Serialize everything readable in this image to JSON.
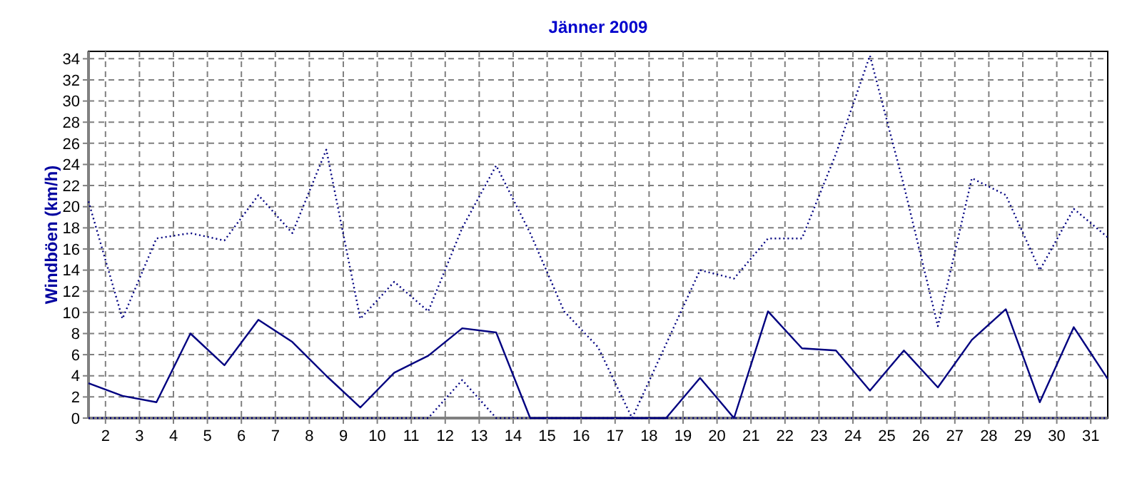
{
  "chart_data": {
    "type": "line",
    "title": "Jänner 2009",
    "ylabel": "Windböen (km/h)",
    "x": [
      1.5,
      2.5,
      3.5,
      4.5,
      5.5,
      6.5,
      7.5,
      8.5,
      9.5,
      10.5,
      11.5,
      12.5,
      13.5,
      14.5,
      15.5,
      16.5,
      17.5,
      18.5,
      19.5,
      20.5,
      21.5,
      22.5,
      23.5,
      24.5,
      25.5,
      26.5,
      27.5,
      28.5,
      29.5,
      30.5,
      31.5
    ],
    "xlim": [
      1.5,
      31.5
    ],
    "xticks": [
      2,
      3,
      4,
      5,
      6,
      7,
      8,
      9,
      10,
      11,
      12,
      13,
      14,
      15,
      16,
      17,
      18,
      19,
      20,
      21,
      22,
      23,
      24,
      25,
      26,
      27,
      28,
      29,
      30,
      31
    ],
    "ylim": [
      0,
      34.7
    ],
    "yticks": [
      0,
      2,
      4,
      6,
      8,
      10,
      12,
      14,
      16,
      18,
      20,
      22,
      24,
      26,
      28,
      30,
      32,
      34
    ],
    "grid": true,
    "marker": "none",
    "series": [
      {
        "color": "#000080",
        "line_style": "dotted",
        "values": [
          20.5,
          9.4,
          17,
          17.5,
          16.8,
          21.1,
          17.5,
          25.4,
          9.4,
          12.9,
          10.1,
          18,
          23.9,
          17.5,
          10.1,
          6.7,
          0,
          7,
          14,
          13.2,
          17,
          17,
          25,
          34.3,
          22,
          8.7,
          22.7,
          21.1,
          14,
          19.8,
          17.1
        ]
      },
      {
        "color": "#000080",
        "line_style": "solid",
        "values": [
          3.3,
          2.1,
          1.5,
          8,
          5,
          9.3,
          7.2,
          4,
          1,
          4.3,
          5.9,
          8.5,
          8.1,
          0,
          0,
          0,
          0,
          0,
          3.8,
          0,
          10.1,
          6.6,
          6.4,
          2.6,
          6.4,
          2.9,
          7.4,
          10.3,
          1.5,
          8.6,
          3.7
        ]
      },
      {
        "color": "#000080",
        "line_style": "dotted",
        "values": [
          0,
          0,
          0,
          0,
          0,
          0,
          0,
          0,
          0,
          0,
          0,
          3.6,
          0,
          0,
          0,
          0,
          0,
          0,
          0,
          0,
          0,
          0,
          0,
          0,
          0,
          0,
          0,
          0,
          0,
          0,
          0
        ]
      }
    ]
  }
}
